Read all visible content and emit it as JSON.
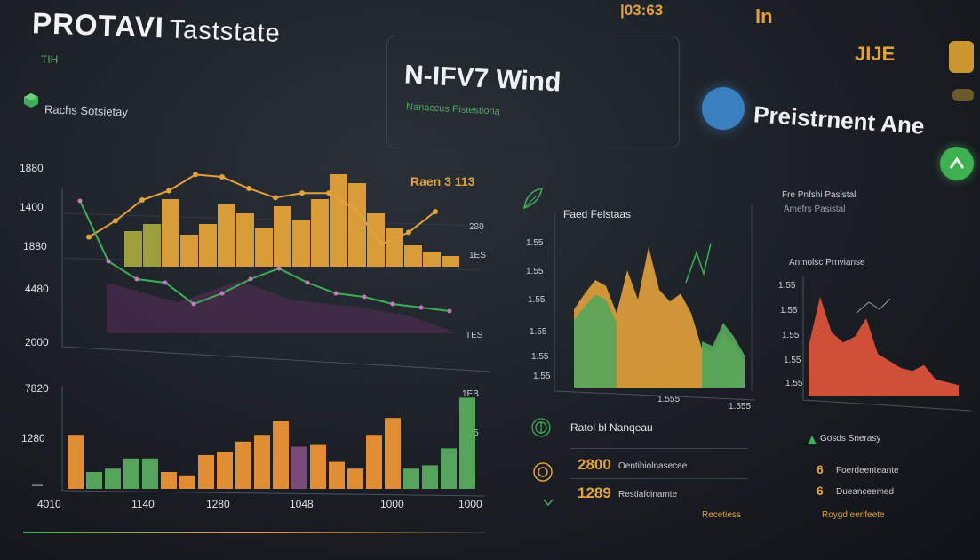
{
  "header": {
    "title": "PROTAVI",
    "title_suffix": "Taststate",
    "tag": "TIH",
    "legend_label": "Rachs Sotsietay",
    "top_orange": "|03:63",
    "top_right_a": "ln",
    "top_right_b": "JIJE"
  },
  "card2": {
    "title": "N-IFV7 Wind",
    "subtitle": "Nanaccus Pistestiona"
  },
  "card3": {
    "title": "Preistrnent Ane"
  },
  "main_chart": {
    "y_labels": [
      "1880",
      "1400",
      "1880",
      "4480",
      "2000"
    ],
    "corner_label": "Raen 3 113",
    "right_labels": [
      "280",
      "1ES",
      "TES"
    ],
    "bar_values": [
      20,
      24,
      38,
      18,
      24,
      35,
      30,
      22,
      34,
      26,
      38,
      52,
      47,
      30,
      22,
      12,
      8,
      6
    ],
    "line_orange": [
      18,
      32,
      50,
      58,
      72,
      70,
      60,
      52,
      56,
      56,
      42,
      12,
      22,
      40
    ],
    "line_green": [
      82,
      48,
      38,
      36,
      24,
      30,
      38,
      44,
      36,
      30,
      28,
      24,
      22,
      20
    ]
  },
  "lower_chart": {
    "y_labels": [
      "7820",
      "1280",
      "—"
    ],
    "x_labels": [
      "4010",
      "1140",
      "1280",
      "1048",
      "1000",
      "1000"
    ],
    "right_labels": [
      "1EB",
      "135"
    ],
    "bar_values": [
      32,
      10,
      12,
      18,
      18,
      10,
      8,
      20,
      22,
      28,
      32,
      40,
      25,
      26,
      16,
      12,
      32,
      42,
      12,
      14,
      24,
      54
    ],
    "bar_colors": [
      "#e08d33",
      "#54a55b",
      "#54a55b",
      "#54a55b",
      "#54a55b",
      "#e08d33",
      "#e08d33",
      "#e08d33",
      "#e08d33",
      "#e08d33",
      "#e08d33",
      "#e08d33",
      "#7a4a78",
      "#e08d33",
      "#e08d33",
      "#e08d33",
      "#e08d33",
      "#e08d33",
      "#54a55b",
      "#54a55b",
      "#54a55b",
      "#54a55b"
    ]
  },
  "mid_chart": {
    "title": "Faed Felstaas",
    "y_labels": [
      "1.55",
      "1.55",
      "1.55",
      "1.55",
      "1.55",
      "1.55"
    ],
    "x_labels": [
      "1.555",
      "1.555"
    ],
    "area_values": [
      40,
      48,
      55,
      52,
      38,
      60,
      45,
      72,
      50,
      44,
      48,
      38,
      20,
      18,
      28,
      22,
      14
    ]
  },
  "right_chart": {
    "title": "Fre Pnfshi Pasistal",
    "subtitle": "Amefrs Pasistal",
    "list_label": "Anmolsc Prnvianse",
    "y_labels": [
      "1.55",
      "1.55",
      "1.55",
      "1.55",
      "1.55"
    ],
    "area_values": [
      35,
      70,
      45,
      38,
      42,
      55,
      30,
      25,
      20,
      18,
      22,
      12,
      10,
      8
    ]
  },
  "kpi_panel": {
    "title": "Ratol bl Nanqeau",
    "rows": [
      {
        "value": "2800",
        "caption": "Oentihiolnasecee"
      },
      {
        "value": "1289",
        "caption": "Restlafcinamte"
      }
    ],
    "footer": "Recetiess"
  },
  "right_list": {
    "title": "Gosds Snerasy",
    "rows": [
      {
        "icon": "6",
        "caption": "Foerdeenteante"
      },
      {
        "icon": "6",
        "caption": "Dueanceemed"
      }
    ],
    "footer": "Roygd eerifeete"
  },
  "colors": {
    "orange": "#e3a23a",
    "green": "#54a55b",
    "red": "#d9523a",
    "purple": "#5a2e5a",
    "blue": "#3a7fc0"
  }
}
